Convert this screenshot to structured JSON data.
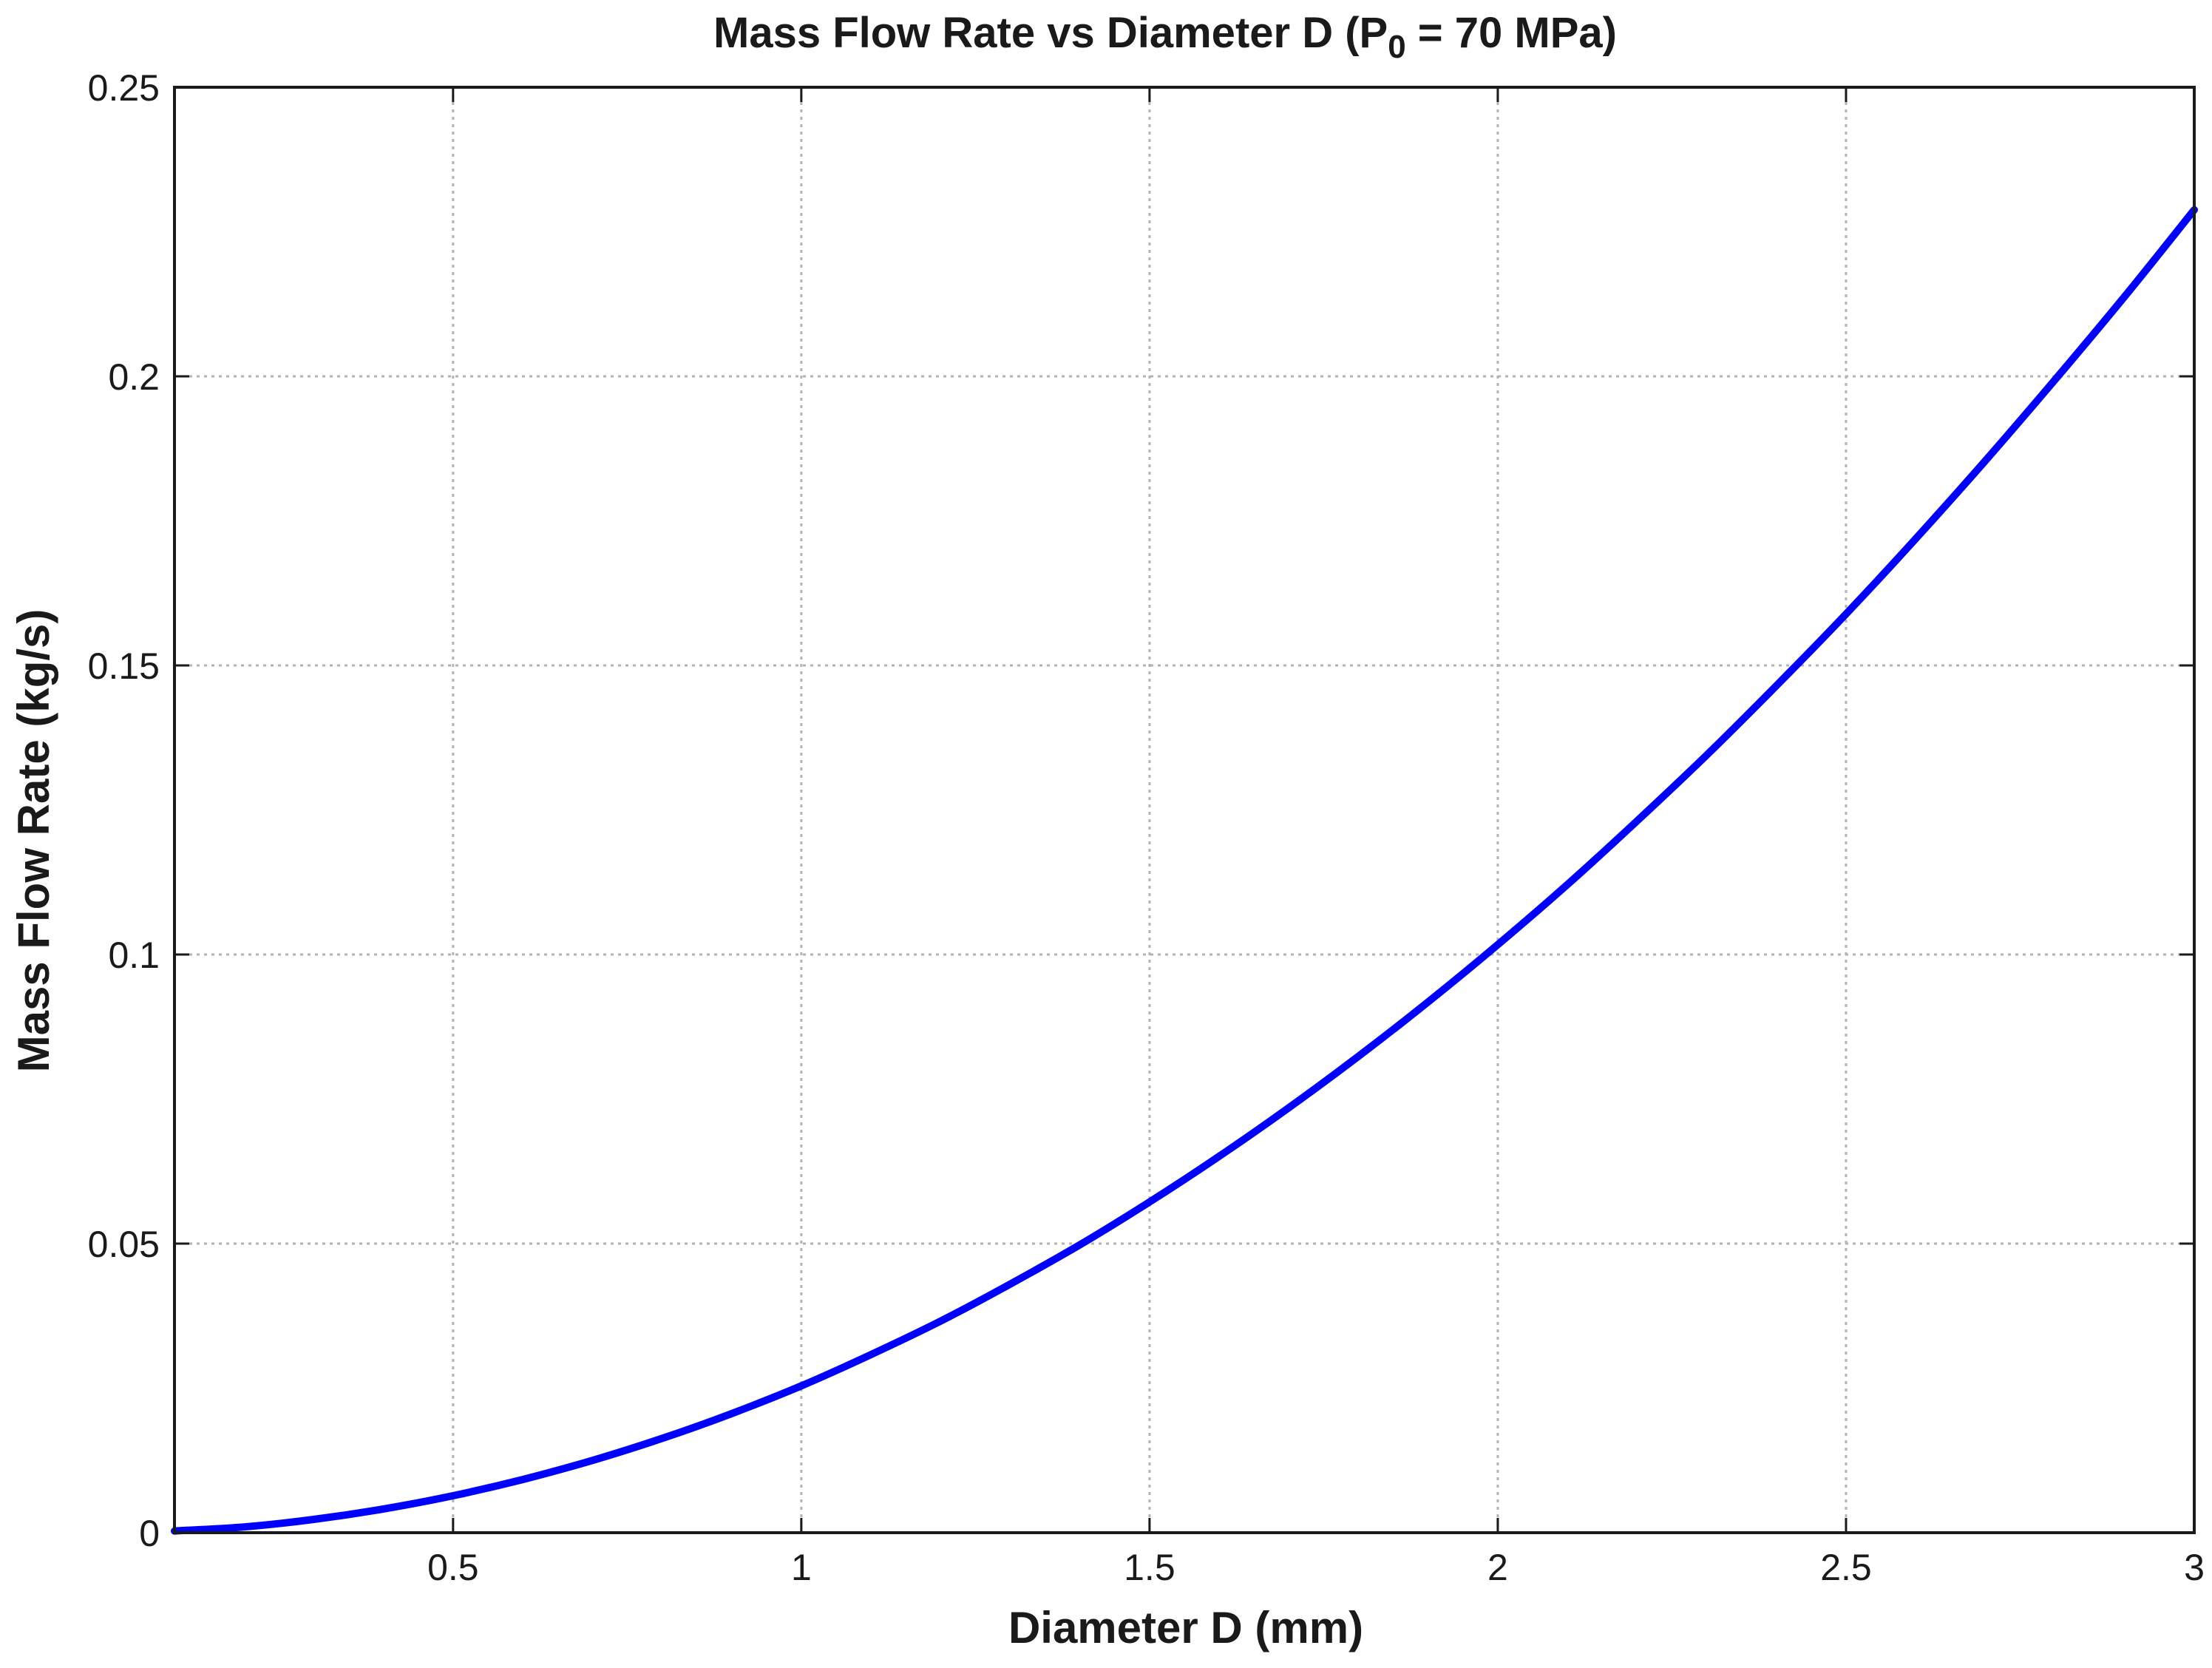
{
  "chart_data": {
    "type": "line",
    "title_main": "Mass Flow Rate vs Diameter D (P",
    "title_sub": "0",
    "title_tail": " = 70 MPa)",
    "xlabel": "Diameter D (mm)",
    "ylabel": "Mass Flow Rate (kg/s)",
    "xlim": [
      0.1,
      3
    ],
    "ylim": [
      0,
      0.25
    ],
    "xticks": [
      0.5,
      1,
      1.5,
      2,
      2.5,
      3
    ],
    "xtick_labels": [
      "0.5",
      "1",
      "1.5",
      "2",
      "2.5",
      "3"
    ],
    "yticks": [
      0,
      0.05,
      0.1,
      0.15,
      0.2,
      0.25
    ],
    "ytick_labels": [
      "0",
      "0.05",
      "0.1",
      "0.15",
      "0.2",
      "0.25"
    ],
    "grid": true,
    "series": [
      {
        "color": "#0000ff",
        "x": [
          0.1,
          0.2,
          0.3,
          0.4,
          0.5,
          0.6,
          0.7,
          0.8,
          0.9,
          1.0,
          1.1,
          1.2,
          1.3,
          1.4,
          1.5,
          1.6,
          1.7,
          1.8,
          1.9,
          2.0,
          2.1,
          2.2,
          2.3,
          2.4,
          2.5,
          2.6,
          2.7,
          2.8,
          2.9,
          3.0
        ],
        "y": [
          0.0003,
          0.001,
          0.0023,
          0.0041,
          0.0064,
          0.0092,
          0.0125,
          0.0163,
          0.0206,
          0.0254,
          0.0308,
          0.0366,
          0.043,
          0.0498,
          0.0572,
          0.0651,
          0.0735,
          0.0824,
          0.0918,
          0.1017,
          0.1121,
          0.1231,
          0.1345,
          0.1465,
          0.1589,
          0.1719,
          0.1854,
          0.1994,
          0.2138,
          0.2288
        ]
      }
    ]
  }
}
